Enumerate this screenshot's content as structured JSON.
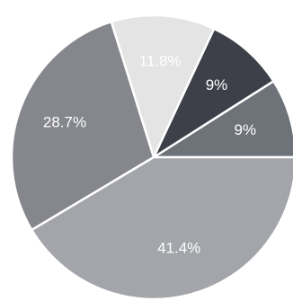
{
  "chart_data": {
    "type": "pie",
    "title": "",
    "slices": [
      {
        "label": "9%",
        "value": 9,
        "color": "#6e7279"
      },
      {
        "label": "9%",
        "value": 9,
        "color": "#3d4048"
      },
      {
        "label": "11.8%",
        "value": 11.8,
        "color": "#e4e4e4"
      },
      {
        "label": "28.7%",
        "value": 28.7,
        "color": "#85878d"
      },
      {
        "label": "41.4%",
        "value": 41.4,
        "color": "#a3a5aa"
      }
    ],
    "legend": "none"
  }
}
